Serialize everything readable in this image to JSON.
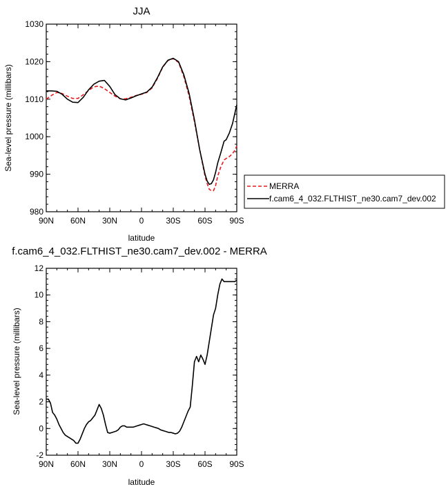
{
  "chart_data": [
    {
      "type": "line",
      "title": "JJA",
      "xlabel": "latitude",
      "ylabel": "Sea-level pressure (millibars)",
      "xlim": [
        -90,
        90
      ],
      "ylim": [
        980,
        1030
      ],
      "x_ticks": [
        -90,
        -60,
        -30,
        0,
        30,
        60,
        90
      ],
      "x_tick_labels": [
        "90N",
        "60N",
        "30N",
        "0",
        "30S",
        "60S",
        "90S"
      ],
      "y_ticks": [
        980,
        990,
        1000,
        1010,
        1020,
        1030
      ],
      "y_tick_labels": [
        "980",
        "990",
        "1000",
        "1010",
        "1020",
        "1030"
      ],
      "grid": false,
      "legend_position": "right",
      "x": [
        -90,
        -85,
        -80,
        -75,
        -70,
        -65,
        -60,
        -55,
        -50,
        -45,
        -40,
        -35,
        -30,
        -25,
        -20,
        -15,
        -10,
        -5,
        0,
        5,
        10,
        15,
        20,
        25,
        30,
        35,
        40,
        45,
        50,
        55,
        60,
        62,
        64,
        66,
        68,
        70,
        72,
        75,
        78,
        80,
        83,
        86,
        88,
        90
      ],
      "series": [
        {
          "name": "MERRA",
          "color": "#e8191c",
          "dash": "dashed",
          "values": [
            1010,
            1011,
            1011.8,
            1011.5,
            1010.8,
            1010.2,
            1010.2,
            1011.2,
            1012.3,
            1013.3,
            1013.5,
            1012.8,
            1011.8,
            1010.8,
            1010.1,
            1010.1,
            1010.5,
            1011,
            1011.3,
            1011.8,
            1013,
            1015.5,
            1018.5,
            1020.3,
            1020.8,
            1019.8,
            1016,
            1010.8,
            1004,
            996.5,
            989.5,
            987.5,
            986,
            985.6,
            985.6,
            987,
            989.5,
            992,
            993.8,
            994.2,
            994.7,
            995.5,
            996.3,
            997.5
          ]
        },
        {
          "name": "f.cam6_4_032.FLTHIST_ne30.cam7_dev.002",
          "color": "#000000",
          "dash": "solid",
          "values": [
            1012.2,
            1012.2,
            1012.1,
            1011.3,
            1010,
            1009.2,
            1009.1,
            1010.5,
            1012.5,
            1014,
            1014.8,
            1015,
            1013.4,
            1011.2,
            1010.1,
            1009.8,
            1010.3,
            1010.9,
            1011.4,
            1011.9,
            1013.2,
            1015.7,
            1018.6,
            1020.4,
            1020.9,
            1020,
            1016.5,
            1011.5,
            1004.5,
            996.5,
            990,
            988.2,
            987.3,
            987.5,
            988.5,
            990.5,
            993,
            995.8,
            998.8,
            999.2,
            1001,
            1003.5,
            1006,
            1008.5
          ]
        }
      ]
    },
    {
      "type": "line",
      "title": "f.cam6_4_032.FLTHIST_ne30.cam7_dev.002 - MERRA",
      "xlabel": "latitude",
      "ylabel": "Sea-level pressure (millibars)",
      "xlim": [
        -90,
        90
      ],
      "ylim": [
        -2,
        12
      ],
      "x_ticks": [
        -90,
        -60,
        -30,
        0,
        30,
        60,
        90
      ],
      "x_tick_labels": [
        "90N",
        "60N",
        "30N",
        "0",
        "30S",
        "60S",
        "90S"
      ],
      "y_ticks": [
        -2,
        0,
        2,
        4,
        6,
        8,
        10,
        12
      ],
      "y_tick_labels": [
        "-2",
        "0",
        "2",
        "4",
        "6",
        "8",
        "10",
        "12"
      ],
      "grid": false,
      "x": [
        -90,
        -88,
        -86,
        -84,
        -82,
        -80,
        -78,
        -76,
        -74,
        -72,
        -70,
        -68,
        -66,
        -64,
        -62,
        -60,
        -58,
        -56,
        -54,
        -52,
        -50,
        -48,
        -46,
        -44,
        -42,
        -40,
        -38,
        -36,
        -34,
        -32,
        -30,
        -28,
        -26,
        -24,
        -22,
        -20,
        -18,
        -16,
        -14,
        -12,
        -10,
        -8,
        -6,
        -4,
        -2,
        0,
        2,
        4,
        6,
        8,
        10,
        12,
        14,
        16,
        18,
        20,
        22,
        24,
        26,
        28,
        30,
        32,
        34,
        36,
        38,
        40,
        42,
        44,
        46,
        48,
        50,
        52,
        54,
        56,
        58,
        60,
        62,
        64,
        66,
        68,
        70,
        72,
        74,
        76,
        78,
        80,
        82,
        84,
        86,
        88,
        90
      ],
      "series": [
        {
          "name": "",
          "color": "#000000",
          "dash": "solid",
          "values": [
            2.2,
            2.2,
            1.9,
            1.2,
            1.0,
            0.7,
            0.3,
            0.0,
            -0.3,
            -0.5,
            -0.6,
            -0.7,
            -0.8,
            -0.9,
            -1.1,
            -1.1,
            -0.8,
            -0.4,
            0.0,
            0.3,
            0.5,
            0.6,
            0.8,
            1.0,
            1.4,
            1.8,
            1.5,
            1.0,
            0.3,
            -0.3,
            -0.35,
            -0.3,
            -0.25,
            -0.2,
            -0.1,
            0.1,
            0.2,
            0.2,
            0.1,
            0.1,
            0.1,
            0.1,
            0.15,
            0.2,
            0.25,
            0.3,
            0.35,
            0.3,
            0.25,
            0.2,
            0.15,
            0.1,
            0.05,
            0.0,
            -0.1,
            -0.15,
            -0.2,
            -0.25,
            -0.3,
            -0.3,
            -0.35,
            -0.4,
            -0.35,
            -0.2,
            0.1,
            0.5,
            0.9,
            1.3,
            1.6,
            3.2,
            5.0,
            5.4,
            5.0,
            5.5,
            5.2,
            4.8,
            5.5,
            6.5,
            7.5,
            8.5,
            9.0,
            10.0,
            10.8,
            11.2,
            11.0,
            11.0,
            11.0,
            11.0,
            11.0,
            11.0,
            11.1
          ]
        }
      ]
    }
  ]
}
